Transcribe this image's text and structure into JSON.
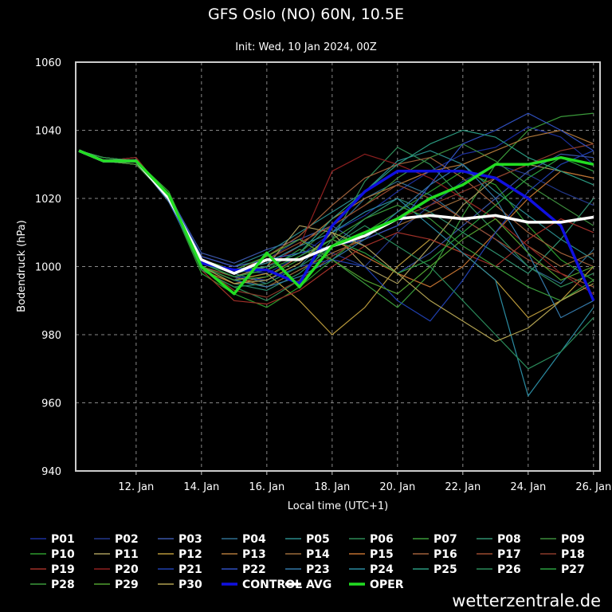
{
  "chart_data": {
    "type": "line",
    "title": "GFS Oslo (NO) 60N, 10.5E",
    "subtitle": "Init: Wed, 10 Jan 2024, 00Z",
    "ylabel": "Bodendruck (hPa)",
    "xlabel": "Local time (UTC+1)",
    "watermark": "wetterzentrale.de",
    "grid": true,
    "xlim": [
      10.15,
      26.2
    ],
    "xticks": [
      {
        "value": 12,
        "label": "12. Jan"
      },
      {
        "value": 14,
        "label": "14. Jan"
      },
      {
        "value": 16,
        "label": "16. Jan"
      },
      {
        "value": 18,
        "label": "18. Jan"
      },
      {
        "value": 20,
        "label": "20. Jan"
      },
      {
        "value": 22,
        "label": "22. Jan"
      },
      {
        "value": 24,
        "label": "24. Jan"
      },
      {
        "value": 26,
        "label": "26. Jan"
      }
    ],
    "ylim": [
      940,
      1060
    ],
    "yticks": [
      940,
      960,
      980,
      1000,
      1020,
      1040,
      1060
    ],
    "x": [
      10.25,
      11,
      12,
      13,
      14,
      15,
      16,
      17,
      18,
      19,
      20,
      21,
      22,
      23,
      24,
      25,
      26
    ],
    "series": [
      {
        "name": "P01",
        "color": "#1c2f9c",
        "values": [
          1034,
          1031,
          1031,
          1021,
          1001,
          999,
          998,
          1003,
          1010,
          1015,
          1022,
          1028,
          1033,
          1035,
          1041,
          1038,
          1030
        ]
      },
      {
        "name": "P02",
        "color": "#22388c",
        "values": [
          1034,
          1031,
          1030,
          1020,
          1000,
          996,
          1002,
          1008,
          1004,
          1000,
          1010,
          1018,
          1025,
          1030,
          1027,
          1022,
          1018
        ]
      },
      {
        "name": "P03",
        "color": "#3a55a8",
        "values": [
          1034,
          1031,
          1031,
          1021,
          1004,
          1001,
          1005,
          1008,
          1012,
          1006,
          998,
          1004,
          1012,
          1020,
          1028,
          1033,
          1032
        ]
      },
      {
        "name": "P04",
        "color": "#2f6f8f",
        "values": [
          1034,
          1032,
          1031,
          1019,
          1002,
          998,
          995,
          1000,
          1010,
          1020,
          1025,
          1021,
          1014,
          1008,
          1000,
          995,
          1005
        ]
      },
      {
        "name": "P05",
        "color": "#2a8a8a",
        "values": [
          1034,
          1031,
          1032,
          1020,
          1003,
          1000,
          1004,
          1010,
          1016,
          1022,
          1031,
          1034,
          1030,
          1022,
          1015,
          1008,
          1002
        ]
      },
      {
        "name": "P06",
        "color": "#2e8b57",
        "values": [
          1034,
          1031,
          1031,
          1020,
          999,
          994,
          990,
          996,
          1008,
          1025,
          1035,
          1030,
          1020,
          1010,
          1000,
          994,
          998
        ]
      },
      {
        "name": "P07",
        "color": "#3a9a3a",
        "values": [
          1034,
          1032,
          1031,
          1022,
          1001,
          997,
          999,
          1005,
          1002,
          995,
          988,
          998,
          1015,
          1030,
          1040,
          1044,
          1045
        ]
      },
      {
        "name": "P08",
        "color": "#2f8f6f",
        "values": [
          1034,
          1031,
          1030,
          1020,
          1000,
          995,
          993,
          998,
          1006,
          1014,
          1020,
          1016,
          1010,
          1004,
          998,
          1008,
          1020
        ]
      },
      {
        "name": "P09",
        "color": "#3c8c3c",
        "values": [
          1034,
          1031,
          1031,
          1021,
          1002,
          999,
          1000,
          1004,
          1012,
          1018,
          1026,
          1032,
          1036,
          1031,
          1024,
          1018,
          1012
        ]
      },
      {
        "name": "P10",
        "color": "#2d9a2d",
        "values": [
          1034,
          1031,
          1031,
          1020,
          998,
          992,
          988,
          994,
          1002,
          1010,
          1016,
          1022,
          1028,
          1024,
          1012,
          1002,
          996
        ]
      },
      {
        "name": "P11",
        "color": "#a89a5a",
        "values": [
          1034,
          1031,
          1032,
          1019,
          1001,
          997,
          1000,
          1012,
          1010,
          1000,
          995,
          1006,
          1018,
          1026,
          1030,
          1028,
          1026
        ]
      },
      {
        "name": "P12",
        "color": "#b8983a",
        "values": [
          1034,
          1031,
          1031,
          1021,
          1000,
          996,
          998,
          990,
          980,
          988,
          1000,
          1008,
          1004,
          996,
          985,
          990,
          1000
        ]
      },
      {
        "name": "P13",
        "color": "#b0783a",
        "values": [
          1034,
          1032,
          1031,
          1020,
          1002,
          999,
          1001,
          1006,
          1014,
          1020,
          1024,
          1028,
          1030,
          1034,
          1038,
          1040,
          1036
        ]
      },
      {
        "name": "P14",
        "color": "#9a6a3a",
        "values": [
          1034,
          1031,
          1031,
          1020,
          1000,
          997,
          994,
          999,
          1004,
          1008,
          1012,
          1016,
          1020,
          1014,
          1006,
          1000,
          1004
        ]
      },
      {
        "name": "P15",
        "color": "#c07030",
        "values": [
          1034,
          1031,
          1030,
          1021,
          999,
          995,
          997,
          1003,
          1008,
          1003,
          998,
          994,
          1000,
          1010,
          1020,
          1028,
          1026
        ]
      },
      {
        "name": "P16",
        "color": "#a0603a",
        "values": [
          1034,
          1031,
          1031,
          1020,
          1001,
          998,
          1003,
          1009,
          1018,
          1026,
          1030,
          1032,
          1026,
          1018,
          1010,
          1004,
          1000
        ]
      },
      {
        "name": "P17",
        "color": "#9a4a30",
        "values": [
          1034,
          1032,
          1031,
          1019,
          1003,
          1000,
          1002,
          1007,
          1012,
          1018,
          1024,
          1020,
          1014,
          1008,
          1002,
          998,
          994
        ]
      },
      {
        "name": "P18",
        "color": "#8a3a2a",
        "values": [
          1034,
          1031,
          1031,
          1020,
          1000,
          993,
          991,
          996,
          1003,
          1009,
          1014,
          1018,
          1022,
          1026,
          1030,
          1034,
          1036
        ]
      },
      {
        "name": "P19",
        "color": "#a03028",
        "values": [
          1034,
          1031,
          1031,
          1021,
          999,
          990,
          989,
          993,
          1000,
          1006,
          1010,
          1008,
          1004,
          1000,
          1008,
          1014,
          1010
        ]
      },
      {
        "name": "P20",
        "color": "#902020",
        "values": [
          1034,
          1031,
          1032,
          1020,
          1002,
          998,
          1000,
          1006,
          1028,
          1033,
          1030,
          1026,
          1020,
          1014,
          1006,
          998,
          992
        ]
      },
      {
        "name": "P21",
        "color": "#2040b0",
        "values": [
          1034,
          1031,
          1031,
          1020,
          1001,
          997,
          996,
          1000,
          1002,
          1000,
          990,
          984,
          996,
          1010,
          1022,
          1030,
          1034
        ]
      },
      {
        "name": "P22",
        "color": "#3050c0",
        "values": [
          1034,
          1032,
          1031,
          1021,
          1003,
          1000,
          1002,
          1004,
          1006,
          1008,
          1012,
          1024,
          1036,
          1040,
          1045,
          1040,
          1034
        ]
      },
      {
        "name": "P23",
        "color": "#3478a8",
        "values": [
          1034,
          1031,
          1031,
          1019,
          1000,
          996,
          994,
          997,
          1002,
          1008,
          1016,
          1024,
          1030,
          1020,
          1004,
          985,
          990
        ]
      },
      {
        "name": "P24",
        "color": "#2a8aa0",
        "values": [
          1034,
          1031,
          1030,
          1020,
          1002,
          999,
          1001,
          1006,
          1010,
          1016,
          1020,
          1012,
          1004,
          996,
          962,
          975,
          988
        ]
      },
      {
        "name": "P25",
        "color": "#2a9a80",
        "values": [
          1034,
          1031,
          1031,
          1021,
          1001,
          998,
          1000,
          1004,
          1014,
          1022,
          1030,
          1036,
          1040,
          1038,
          1032,
          1028,
          1024
        ]
      },
      {
        "name": "P26",
        "color": "#2a8a5a",
        "values": [
          1034,
          1031,
          1031,
          1020,
          999,
          994,
          995,
          1000,
          1006,
          1012,
          1006,
          1000,
          990,
          980,
          970,
          975,
          985
        ]
      },
      {
        "name": "P27",
        "color": "#2aa040",
        "values": [
          1034,
          1032,
          1031,
          1020,
          1001,
          997,
          999,
          1003,
          1008,
          1004,
          998,
          1002,
          1010,
          1018,
          1026,
          1032,
          1028
        ]
      },
      {
        "name": "P28",
        "color": "#3a9a3a",
        "values": [
          1034,
          1031,
          1031,
          1021,
          1000,
          996,
          997,
          1002,
          1008,
          1014,
          1018,
          1014,
          1006,
          1000,
          994,
          990,
          996
        ]
      },
      {
        "name": "P29",
        "color": "#50a030",
        "values": [
          1034,
          1031,
          1030,
          1020,
          1002,
          999,
          1003,
          1008,
          1002,
          996,
          992,
          1000,
          1008,
          1014,
          1004,
          996,
          1000
        ]
      },
      {
        "name": "P30",
        "color": "#b0a050",
        "values": [
          1034,
          1031,
          1031,
          1020,
          1000,
          995,
          996,
          1001,
          1010,
          1006,
          998,
          990,
          984,
          978,
          982,
          990,
          995
        ]
      },
      {
        "name": "CONTROL",
        "color": "#1010e0",
        "values": [
          1034,
          1031,
          1031,
          1020,
          1001,
          999,
          999,
          995,
          1012,
          1022,
          1028,
          1028,
          1028,
          1026,
          1020,
          1012,
          990
        ]
      },
      {
        "name": "AVG",
        "color": "#ffffff",
        "values": [
          1034,
          1031,
          1031,
          1020,
          1002,
          998,
          1002,
          1002,
          1006,
          1009,
          1014,
          1015,
          1014,
          1015,
          1013,
          1013,
          1014.5
        ]
      },
      {
        "name": "OPER",
        "color": "#22dd22",
        "values": [
          1034,
          1031,
          1031,
          1021,
          1000,
          992,
          1004,
          994,
          1006,
          1010,
          1014,
          1020,
          1024,
          1030,
          1030,
          1032,
          1030
        ]
      }
    ]
  }
}
